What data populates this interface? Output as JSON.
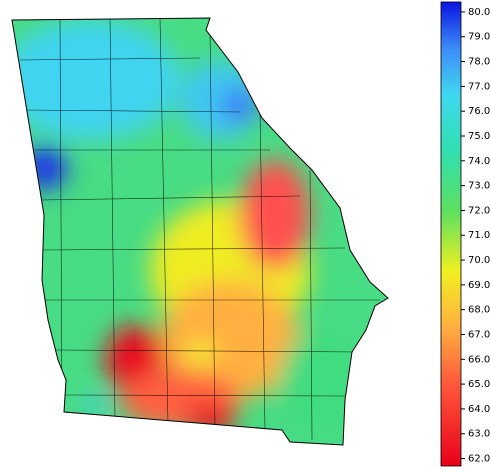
{
  "colorbar": {
    "lim": [
      61.7,
      80.4
    ],
    "ticks": [
      {
        "value": 62,
        "label": "62.0"
      },
      {
        "value": 63,
        "label": "63.0"
      },
      {
        "value": 64,
        "label": "64.0"
      },
      {
        "value": 65,
        "label": "65.0"
      },
      {
        "value": 66,
        "label": "66.0"
      },
      {
        "value": 67,
        "label": "67.0"
      },
      {
        "value": 68,
        "label": "68.0"
      },
      {
        "value": 69,
        "label": "69.0"
      },
      {
        "value": 70,
        "label": "70.0"
      },
      {
        "value": 71,
        "label": "71.0"
      },
      {
        "value": 72,
        "label": "72.0"
      },
      {
        "value": 73,
        "label": "73.0"
      },
      {
        "value": 74,
        "label": "74.0"
      },
      {
        "value": 75,
        "label": "75.0"
      },
      {
        "value": 76,
        "label": "76.0"
      },
      {
        "value": 77,
        "label": "77.0"
      },
      {
        "value": 78,
        "label": "78.0"
      },
      {
        "value": 79,
        "label": "79.0"
      },
      {
        "value": 80,
        "label": "80.0"
      }
    ]
  }
}
